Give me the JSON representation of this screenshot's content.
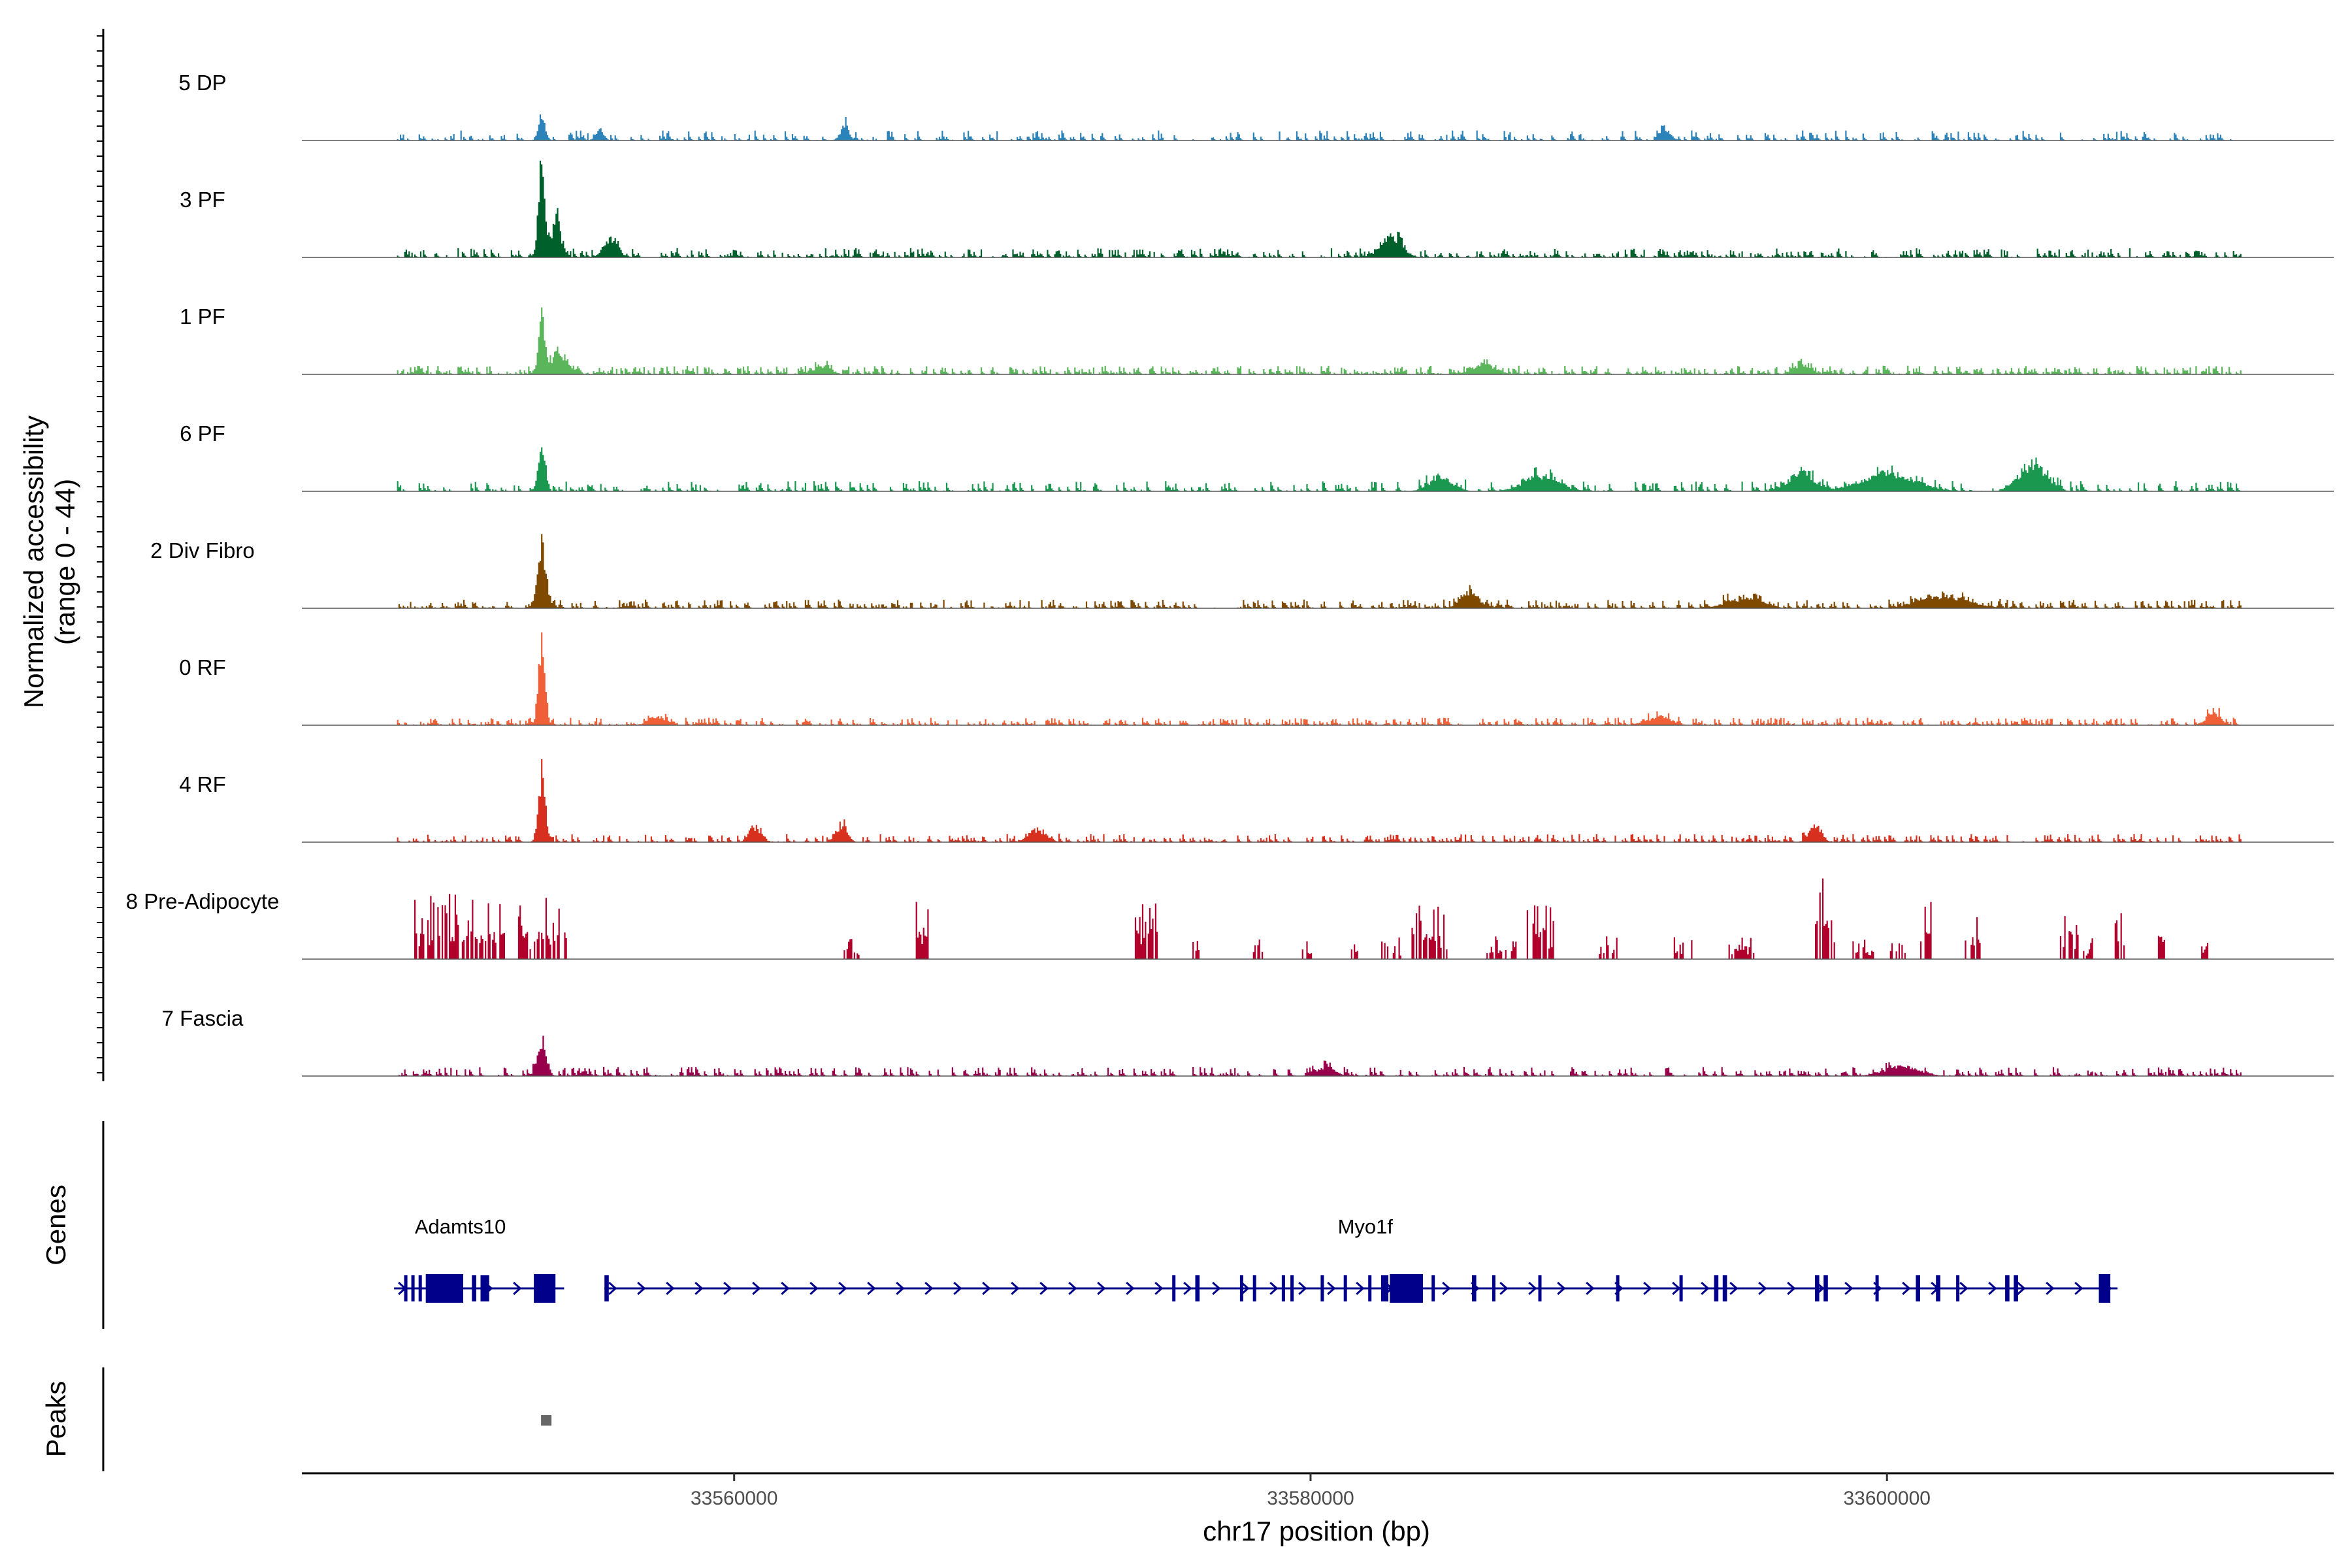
{
  "chart_data": {
    "type": "area",
    "title": "",
    "ylabel_line1": "Normalized accessibility",
    "ylabel_line2": "(range 0 - 44)",
    "ylim": [
      0,
      44
    ],
    "xlabel": "chr17 position (bp)",
    "xlim": [
      33545000,
      33615500
    ],
    "data_extent": [
      33548300,
      33612300
    ],
    "x_ticks": [
      {
        "value": 33560000,
        "label": "33560000"
      },
      {
        "value": 33580000,
        "label": "33580000"
      },
      {
        "value": 33600000,
        "label": "33600000"
      }
    ],
    "tracks": [
      {
        "name": "5 DP",
        "color": "#2b83ba",
        "noise": 3.5,
        "density": 0.35,
        "seed": 11,
        "peaks": [
          [
            33553300,
            8,
            120
          ],
          [
            33563800,
            4.5,
            150
          ],
          [
            33555300,
            3,
            150
          ],
          [
            33592300,
            3,
            200
          ]
        ]
      },
      {
        "name": "3 PF",
        "color": "#00602b",
        "noise": 3.2,
        "density": 0.5,
        "seed": 23,
        "peaks": [
          [
            33553300,
            33,
            110
          ],
          [
            33553800,
            12,
            160
          ],
          [
            33555700,
            5,
            250
          ],
          [
            33582800,
            7,
            350
          ]
        ]
      },
      {
        "name": "1 PF",
        "color": "#5ab55b",
        "noise": 3.0,
        "density": 0.6,
        "seed": 37,
        "peaks": [
          [
            33553300,
            17,
            110
          ],
          [
            33553900,
            6,
            300
          ],
          [
            33563000,
            2.5,
            300
          ],
          [
            33586000,
            3,
            400
          ],
          [
            33597000,
            2.5,
            300
          ]
        ]
      },
      {
        "name": "6 PF",
        "color": "#1a9850",
        "noise": 3.6,
        "density": 0.35,
        "seed": 41,
        "peaks": [
          [
            33553300,
            16,
            120
          ],
          [
            33605000,
            9,
            450
          ],
          [
            33600000,
            6,
            900
          ],
          [
            33597000,
            7,
            400
          ],
          [
            33588000,
            5,
            600
          ],
          [
            33584500,
            4,
            400
          ]
        ]
      },
      {
        "name": "2 Div Fibro",
        "color": "#7f4a00",
        "noise": 3.0,
        "density": 0.45,
        "seed": 53,
        "peaks": [
          [
            33553300,
            20,
            140
          ],
          [
            33585500,
            5,
            300
          ],
          [
            33602000,
            4,
            800
          ],
          [
            33595000,
            3,
            600
          ]
        ]
      },
      {
        "name": "0 RF",
        "color": "#ef6038",
        "noise": 2.6,
        "density": 0.55,
        "seed": 61,
        "peaks": [
          [
            33553300,
            25,
            110
          ],
          [
            33611300,
            4,
            250
          ],
          [
            33557300,
            2.5,
            300
          ],
          [
            33592000,
            2.5,
            400
          ]
        ]
      },
      {
        "name": "4 RF",
        "color": "#d7301f",
        "noise": 2.8,
        "density": 0.45,
        "seed": 71,
        "peaks": [
          [
            33553300,
            22,
            120
          ],
          [
            33560700,
            5,
            200
          ],
          [
            33563700,
            5,
            200
          ],
          [
            33597500,
            6,
            200
          ],
          [
            33570500,
            4,
            300
          ]
        ]
      },
      {
        "name": "8 Pre-Adipocyte",
        "color": "#b0002b",
        "noise": 0,
        "density": 0,
        "seed": 83,
        "clusters": [
          [
            33548900,
            33552000,
            24
          ],
          [
            33552500,
            33554200,
            22
          ],
          [
            33563800,
            33564300,
            8
          ],
          [
            33566300,
            33566700,
            30
          ],
          [
            33573900,
            33574700,
            22
          ],
          [
            33575900,
            33576100,
            8
          ],
          [
            33578000,
            33578300,
            8
          ],
          [
            33579700,
            33580000,
            8
          ],
          [
            33581400,
            33581600,
            8
          ],
          [
            33582400,
            33583100,
            8
          ],
          [
            33583500,
            33584700,
            22
          ],
          [
            33586100,
            33587100,
            8
          ],
          [
            33587500,
            33588400,
            24
          ],
          [
            33590000,
            33590600,
            8
          ],
          [
            33592500,
            33593200,
            8
          ],
          [
            33594400,
            33595400,
            8
          ],
          [
            33597400,
            33598200,
            38
          ],
          [
            33598800,
            33599500,
            8
          ],
          [
            33600100,
            33600600,
            8
          ],
          [
            33601000,
            33601500,
            20
          ],
          [
            33602700,
            33603200,
            16
          ],
          [
            33606000,
            33606600,
            16
          ],
          [
            33606800,
            33607100,
            8
          ],
          [
            33607900,
            33608200,
            16
          ],
          [
            33609300,
            33609600,
            18
          ],
          [
            33610900,
            33611200,
            8
          ]
        ]
      },
      {
        "name": "7 Fascia",
        "color": "#98004b",
        "noise": 3.2,
        "density": 0.4,
        "seed": 97,
        "peaks": [
          [
            33553300,
            12,
            150
          ],
          [
            33580500,
            3,
            300
          ],
          [
            33600500,
            3,
            600
          ]
        ]
      }
    ],
    "genes_axis_label": "Genes",
    "peaks_axis_label": "Peaks",
    "genes": [
      {
        "name": "Adamts10",
        "start": 33548200,
        "end": 33554100,
        "label_x": 33550500,
        "exons": [
          [
            33548550,
            33548650,
            "thin"
          ],
          [
            33548800,
            33548850,
            "thin"
          ],
          [
            33549050,
            33549150,
            "thin"
          ],
          [
            33549300,
            33550600,
            "thick"
          ],
          [
            33550900,
            33551050,
            "thin"
          ],
          [
            33551200,
            33551500,
            "thin"
          ],
          [
            33553050,
            33553800,
            "thick"
          ]
        ]
      },
      {
        "name": "Myo1f",
        "start": 33555500,
        "end": 33608000,
        "label_x": 33581900,
        "exons": [
          [
            33555500,
            33555650,
            "thin"
          ],
          [
            33575200,
            33575300,
            "thin"
          ],
          [
            33576000,
            33576150,
            "thin"
          ],
          [
            33577550,
            33577650,
            "thin"
          ],
          [
            33578000,
            33578100,
            "thin"
          ],
          [
            33579000,
            33579100,
            "thin"
          ],
          [
            33579300,
            33579400,
            "thin"
          ],
          [
            33580350,
            33580450,
            "thin"
          ],
          [
            33581150,
            33581250,
            "thin"
          ],
          [
            33582000,
            33582100,
            "thin"
          ],
          [
            33582450,
            33582700,
            "thin"
          ],
          [
            33582750,
            33583900,
            "thick"
          ],
          [
            33584200,
            33584300,
            "thin"
          ],
          [
            33585600,
            33585750,
            "thin"
          ],
          [
            33586300,
            33586400,
            "thin"
          ],
          [
            33587900,
            33588000,
            "thin"
          ],
          [
            33590600,
            33590700,
            "thin"
          ],
          [
            33592800,
            33592900,
            "thin"
          ],
          [
            33594000,
            33594150,
            "thin"
          ],
          [
            33594300,
            33594450,
            "thin"
          ],
          [
            33597500,
            33597650,
            "thin"
          ],
          [
            33597800,
            33597950,
            "thin"
          ],
          [
            33599600,
            33599700,
            "thin"
          ],
          [
            33601000,
            33601150,
            "thin"
          ],
          [
            33601700,
            33601850,
            "thin"
          ],
          [
            33602400,
            33602500,
            "thin"
          ],
          [
            33604100,
            33604250,
            "thin"
          ],
          [
            33604400,
            33604550,
            "thin"
          ],
          [
            33607350,
            33607750,
            "thick"
          ]
        ]
      }
    ],
    "peak_regions": [
      [
        33553300,
        33553500
      ]
    ]
  }
}
